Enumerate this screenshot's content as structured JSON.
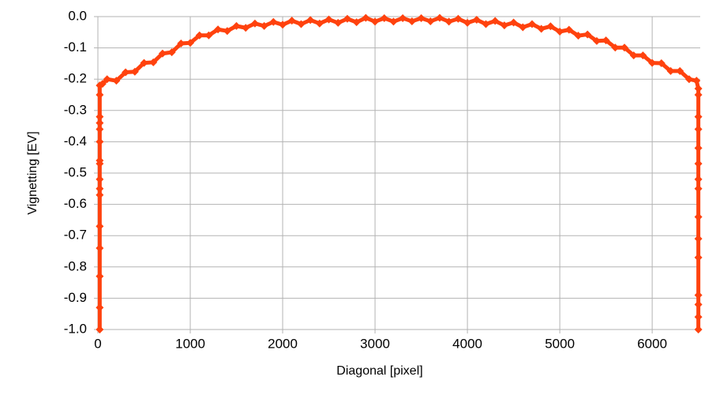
{
  "chart_data": {
    "type": "line",
    "x_label": "Diagonal [pixel]",
    "y_label": "Vignetting [EV]",
    "x": [
      20,
      20,
      20,
      20,
      20,
      20,
      20,
      20,
      20,
      20,
      20,
      20,
      20,
      20,
      20,
      20,
      50,
      100,
      200,
      300,
      400,
      500,
      600,
      700,
      800,
      900,
      1000,
      1100,
      1200,
      1300,
      1400,
      1500,
      1600,
      1700,
      1800,
      1900,
      2000,
      2100,
      2200,
      2300,
      2400,
      2500,
      2600,
      2700,
      2800,
      2900,
      3000,
      3100,
      3200,
      3300,
      3400,
      3500,
      3600,
      3700,
      3800,
      3900,
      4000,
      4100,
      4200,
      4300,
      4400,
      4500,
      4600,
      4700,
      4800,
      4900,
      5000,
      5100,
      5200,
      5300,
      5400,
      5500,
      5600,
      5700,
      5800,
      5900,
      6000,
      6100,
      6200,
      6300,
      6400,
      6480,
      6500,
      6500,
      6500,
      6500,
      6500,
      6500,
      6500,
      6500,
      6500,
      6500,
      6500,
      6500,
      6500,
      6500,
      6500
    ],
    "series": [
      {
        "color": "#ff420e",
        "marker": "diamond",
        "values": [
          -1.0,
          -0.93,
          -0.83,
          -0.74,
          -0.67,
          -0.57,
          -0.55,
          -0.52,
          -0.47,
          -0.46,
          -0.4,
          -0.36,
          -0.34,
          -0.32,
          -0.25,
          -0.22,
          -0.215,
          -0.2,
          -0.205,
          -0.178,
          -0.176,
          -0.148,
          -0.146,
          -0.118,
          -0.114,
          -0.086,
          -0.084,
          -0.06,
          -0.06,
          -0.041,
          -0.046,
          -0.03,
          -0.036,
          -0.022,
          -0.03,
          -0.017,
          -0.026,
          -0.013,
          -0.024,
          -0.011,
          -0.022,
          -0.009,
          -0.02,
          -0.007,
          -0.018,
          -0.004,
          -0.016,
          -0.005,
          -0.016,
          -0.005,
          -0.015,
          -0.005,
          -0.015,
          -0.004,
          -0.016,
          -0.007,
          -0.02,
          -0.01,
          -0.024,
          -0.014,
          -0.028,
          -0.019,
          -0.034,
          -0.024,
          -0.039,
          -0.031,
          -0.048,
          -0.042,
          -0.061,
          -0.057,
          -0.078,
          -0.076,
          -0.099,
          -0.099,
          -0.124,
          -0.124,
          -0.148,
          -0.149,
          -0.174,
          -0.174,
          -0.2,
          -0.205,
          -0.23,
          -0.25,
          -0.32,
          -0.36,
          -0.42,
          -0.47,
          -0.52,
          -0.55,
          -0.64,
          -0.71,
          -0.77,
          -0.89,
          -0.92,
          -0.96,
          -1.0
        ]
      }
    ],
    "xlim": [
      0,
      6520
    ],
    "xticks": [
      0,
      1000,
      2000,
      3000,
      4000,
      5000,
      6000
    ],
    "ylim": [
      -1,
      0
    ],
    "yticks": [
      {
        "value": -1,
        "label": "-1.0"
      },
      -0.9,
      -0.8,
      -0.7,
      -0.6,
      -0.5,
      -0.4,
      -0.3,
      -0.2,
      -0.1,
      {
        "value": 0,
        "label": "0.0"
      }
    ],
    "grid": true
  }
}
